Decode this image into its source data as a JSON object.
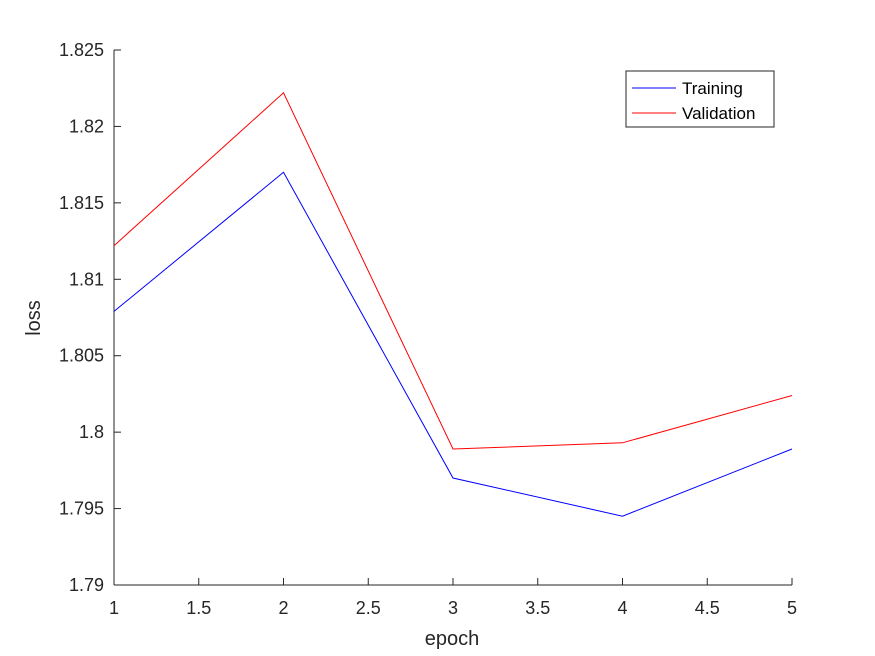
{
  "chart_data": {
    "type": "line",
    "title": "",
    "xlabel": "epoch",
    "ylabel": "loss",
    "xlim": [
      1,
      5
    ],
    "ylim": [
      1.79,
      1.825
    ],
    "x_ticks": [
      1,
      1.5,
      2,
      2.5,
      3,
      3.5,
      4,
      4.5,
      5
    ],
    "x_tick_labels": [
      "1",
      "1.5",
      "2",
      "2.5",
      "3",
      "3.5",
      "4",
      "4.5",
      "5"
    ],
    "y_ticks": [
      1.79,
      1.795,
      1.8,
      1.805,
      1.81,
      1.815,
      1.82,
      1.825
    ],
    "y_tick_labels": [
      "1.79",
      "1.795",
      "1.8",
      "1.805",
      "1.81",
      "1.815",
      "1.82",
      "1.825"
    ],
    "grid": false,
    "legend_position": "top-right",
    "x": [
      1,
      2,
      3,
      4,
      5
    ],
    "series": [
      {
        "name": "Training",
        "color": "#0000ff",
        "values": [
          1.8079,
          1.817,
          1.797,
          1.7945,
          1.7989
        ]
      },
      {
        "name": "Validation",
        "color": "#ff0000",
        "values": [
          1.8122,
          1.8222,
          1.7989,
          1.7993,
          1.8024
        ]
      }
    ]
  }
}
